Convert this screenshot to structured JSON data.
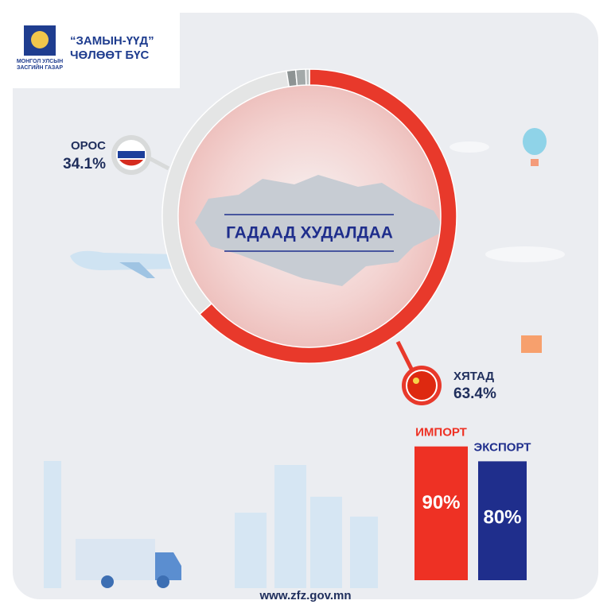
{
  "header": {
    "logo_lines": [
      "МОНГОЛ УЛСЫН",
      "ЗАСГИЙН ГАЗАР"
    ],
    "brand_lines": [
      "“ЗАМЫН-ҮҮД”",
      "ЧӨЛӨӨТ БҮС"
    ]
  },
  "chart_data": [
    {
      "type": "donut",
      "title": "ГАДААД ХУДАЛДАА",
      "categories": [
        "ХЯТАД",
        "ОРОС",
        null,
        null,
        null
      ],
      "values": [
        63.4,
        34.1,
        1.0,
        1.1,
        0.4
      ],
      "value_labels": [
        "63.4%",
        "34.1%",
        null,
        null,
        null
      ],
      "colors": [
        "#e8392b",
        "#e4e5e5",
        "#8d9393",
        "#a3a9a9",
        "#bcc0c0"
      ]
    },
    {
      "type": "bar",
      "categories": [
        "ИМПОРТ",
        "ЭКСПОРТ"
      ],
      "values": [
        90,
        80
      ],
      "value_labels": [
        "90%",
        "80%"
      ],
      "colors": [
        "#ee3124",
        "#1f2e8c"
      ],
      "ylim": [
        0,
        100
      ]
    }
  ],
  "footer": {
    "website": "www.zfz.gov.mn"
  }
}
